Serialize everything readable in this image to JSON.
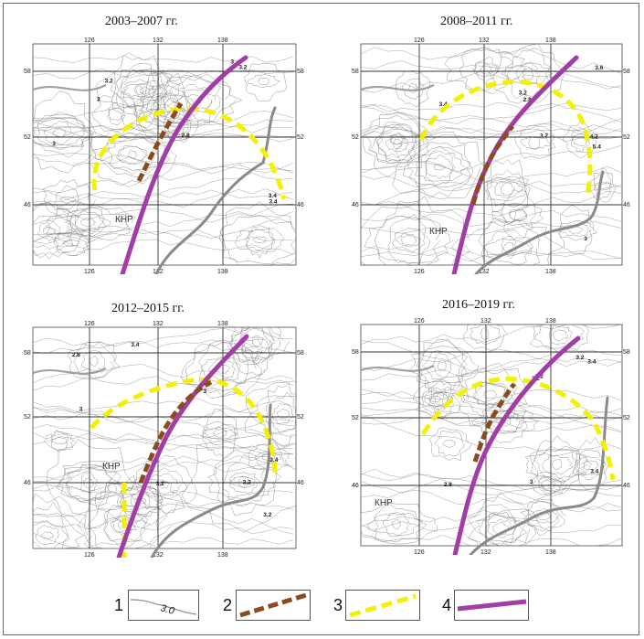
{
  "colors": {
    "contour": "#7a7a7a",
    "grid": "#333333",
    "border_line": "#8a8a8a",
    "brown_dashed": "#8b4a1f",
    "yellow_dashed": "#f2f200",
    "purple_line": "#a23da8"
  },
  "panels": [
    {
      "title": "2003–2007 гг.",
      "lon_ticks": [
        "126",
        "132",
        "138"
      ],
      "lat_ticks": [
        "58",
        "52",
        "46"
      ],
      "region_label": "КНР",
      "contour_labels": [
        "3",
        "3.2",
        "3.4",
        "2.8",
        "3",
        "3.4",
        "3.2",
        "3"
      ]
    },
    {
      "title": "2008–2011 гг.",
      "lon_ticks": [
        "126",
        "132",
        "138"
      ],
      "lat_ticks": [
        "58",
        "52",
        "46"
      ],
      "region_label": "КНР",
      "contour_labels": [
        "2.8",
        "3.2",
        "3.4",
        "3.6",
        "3.2",
        "5.4",
        "4.2",
        "3"
      ]
    },
    {
      "title": "2012–2015 гг.",
      "lon_ticks": [
        "126",
        "132",
        "138"
      ],
      "lat_ticks": [
        "58",
        "52",
        "46"
      ],
      "region_label": "КНР",
      "contour_labels": [
        "3.2",
        "3",
        "2.8",
        "3.2",
        "3.4",
        "3",
        "3.2",
        "3.4"
      ]
    },
    {
      "title": "2016–2019 гг.",
      "lon_ticks": [
        "126",
        "132",
        "138"
      ],
      "lat_ticks": [
        "58",
        "52",
        "46"
      ],
      "region_label": "КНР",
      "contour_labels": [
        "3.2",
        "3.4",
        "2.8",
        "3",
        "3.2",
        "3.4",
        "3.2",
        "3"
      ]
    }
  ],
  "legend": [
    {
      "number": "1",
      "sample_label": "3.0",
      "symbol": "contour-line"
    },
    {
      "number": "2",
      "symbol": "brown-dashed-line"
    },
    {
      "number": "3",
      "symbol": "yellow-dashed-line"
    },
    {
      "number": "4",
      "symbol": "purple-line"
    }
  ]
}
